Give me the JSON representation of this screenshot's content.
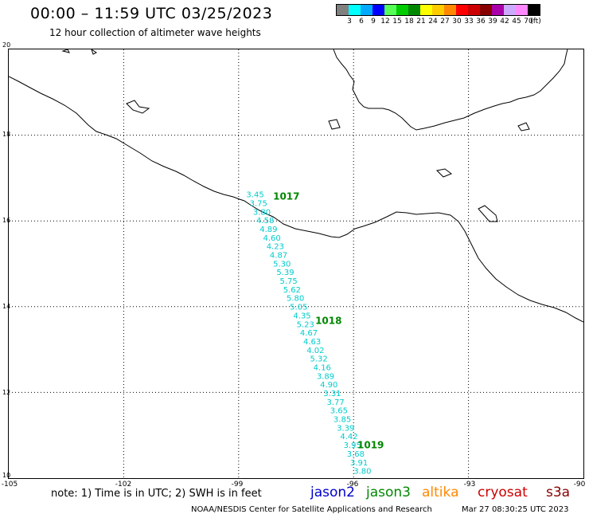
{
  "header": {
    "title": "00:00 – 11:59 UTC 03/25/2023",
    "subtitle": "12 hour collection of altimeter wave heights"
  },
  "color_scale": {
    "unit": "(ft)",
    "bins": [
      {
        "label": "3",
        "color": "#808080"
      },
      {
        "label": "6",
        "color": "#00ffff"
      },
      {
        "label": "9",
        "color": "#00aaff"
      },
      {
        "label": "12",
        "color": "#0000ff"
      },
      {
        "label": "15",
        "color": "#55ff55"
      },
      {
        "label": "18",
        "color": "#00cc00"
      },
      {
        "label": "21",
        "color": "#008800"
      },
      {
        "label": "24",
        "color": "#ffff00"
      },
      {
        "label": "27",
        "color": "#ffcc00"
      },
      {
        "label": "30",
        "color": "#ff8800"
      },
      {
        "label": "33",
        "color": "#ff0000"
      },
      {
        "label": "36",
        "color": "#cc0000"
      },
      {
        "label": "39",
        "color": "#880000"
      },
      {
        "label": "42",
        "color": "#aa00aa"
      },
      {
        "label": "45",
        "color": "#ccaaff"
      },
      {
        "label": "70",
        "color": "#ff88ff"
      },
      {
        "label": "",
        "color": "#000000"
      }
    ]
  },
  "axes": {
    "lat_labels": [
      "20",
      "18",
      "16",
      "14",
      "12",
      "10"
    ],
    "lon_labels": [
      "-105",
      "-102",
      "-99",
      "-96",
      "-93",
      "-90"
    ]
  },
  "time_labels": [
    {
      "text": "1017",
      "lon": -98.1,
      "lat": 16.5
    },
    {
      "text": "1018",
      "lon": -97.0,
      "lat": 13.6
    },
    {
      "text": "1019",
      "lon": -95.9,
      "lat": 10.7
    }
  ],
  "track": {
    "color": "#00cccc",
    "values": [
      "3.45",
      "3.75",
      "3.80",
      "4.58",
      "4.89",
      "4.60",
      "4.23",
      "4.87",
      "5.30",
      "5.39",
      "5.75",
      "5.62",
      "5.80",
      "5.05",
      "4.35",
      "5.23",
      "4.67",
      "4.63",
      "4.02",
      "5.32",
      "4.16",
      "3.89",
      "4.90",
      "3.31",
      "3.77",
      "3.65",
      "3.85",
      "3.39",
      "4.42",
      "3.95",
      "3.68",
      "3.91",
      "3.80"
    ],
    "start": {
      "lon": -98.8,
      "lat": 16.55
    },
    "end": {
      "lon": -96.0,
      "lat": 10.1
    }
  },
  "legend": {
    "note": "note: 1) Time is in UTC; 2) SWH is in feet",
    "satellites": [
      {
        "name": "jason2",
        "color": "#0000cc"
      },
      {
        "name": "jason3",
        "color": "#008800"
      },
      {
        "name": "altika",
        "color": "#ff8800"
      },
      {
        "name": "cryosat",
        "color": "#cc0000"
      },
      {
        "name": "s3a",
        "color": "#880000"
      }
    ]
  },
  "footer": {
    "credit": "NOAA/NESDIS Center for Satellite Applications and Research",
    "timestamp": "Mar 27 08:30:25 UTC 2023"
  }
}
